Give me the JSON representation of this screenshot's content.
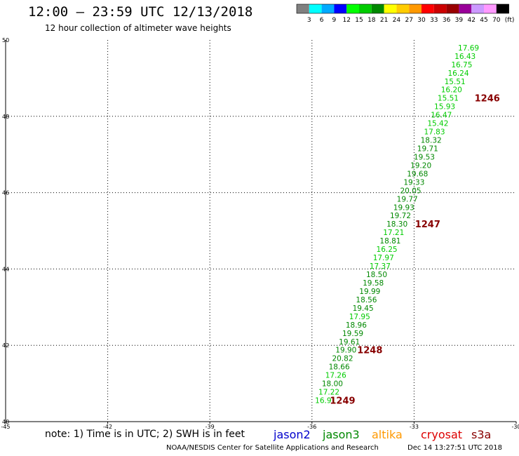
{
  "header": {
    "title": "12:00 – 23:59 UTC 12/13/2018",
    "subtitle": "12 hour collection of altimeter wave heights"
  },
  "color_scale": {
    "labels": [
      "3",
      "6",
      "9",
      "12",
      "15",
      "18",
      "21",
      "24",
      "27",
      "30",
      "33",
      "36",
      "39",
      "42",
      "45",
      "70"
    ],
    "unit": "(ft)",
    "colors": [
      "#808080",
      "#00ffff",
      "#00aaff",
      "#0000ff",
      "#00ff00",
      "#00cc00",
      "#008800",
      "#ffff00",
      "#ffcc00",
      "#ff9900",
      "#ff0000",
      "#cc0000",
      "#990000",
      "#990099",
      "#cc99ff",
      "#ff99ff",
      "#000000"
    ]
  },
  "footer": {
    "note": "note: 1) Time is in UTC; 2) SWH is in feet",
    "legend": [
      {
        "name": "jason2",
        "color": "#0000cc"
      },
      {
        "name": "jason3",
        "color": "#008800"
      },
      {
        "name": "altika",
        "color": "#ff9900"
      },
      {
        "name": "cryosat",
        "color": "#dd0000"
      },
      {
        "name": "s3a",
        "color": "#880000"
      }
    ],
    "credit": "NOAA/NESDIS Center for Satellite Applications and Research",
    "timestamp": "Dec 14 13:27:51 UTC 2018"
  },
  "chart_data": {
    "type": "scatter",
    "title": "12:00 – 23:59 UTC 12/13/2018",
    "subtitle": "12 hour collection of altimeter wave heights",
    "xlim": [
      -45,
      -30
    ],
    "ylim": [
      40,
      50
    ],
    "xticks": [
      -45,
      -42,
      -39,
      -36,
      -33,
      -30
    ],
    "xtick_labels": [
      "-45",
      "-42",
      "-39",
      "-36",
      "-33",
      "-30"
    ],
    "yticks": [
      40,
      42,
      44,
      46,
      48,
      50
    ],
    "ytick_labels": [
      "40",
      "42",
      "44",
      "46",
      "48",
      "50"
    ],
    "grid": true,
    "value_colors": {
      "lt_18": "#00cc00",
      "lt_21": "#008800",
      "ge_21": "#008800"
    },
    "series": [
      {
        "name": "jason3",
        "points": [
          {
            "x": -31.4,
            "y": 49.8,
            "v": "17.69"
          },
          {
            "x": -31.5,
            "y": 49.58,
            "v": "16.43"
          },
          {
            "x": -31.6,
            "y": 49.36,
            "v": "16.75"
          },
          {
            "x": -31.7,
            "y": 49.14,
            "v": "16.24"
          },
          {
            "x": -31.8,
            "y": 48.92,
            "v": "15.51"
          },
          {
            "x": -31.9,
            "y": 48.7,
            "v": "16.20"
          },
          {
            "x": -32.0,
            "y": 48.48,
            "v": "15.51"
          },
          {
            "x": -32.1,
            "y": 48.26,
            "v": "15.93"
          },
          {
            "x": -32.2,
            "y": 48.04,
            "v": "16.47"
          },
          {
            "x": -32.3,
            "y": 47.82,
            "v": "15.42"
          },
          {
            "x": -32.4,
            "y": 47.6,
            "v": "17.83"
          },
          {
            "x": -32.5,
            "y": 47.38,
            "v": "18.32"
          },
          {
            "x": -32.6,
            "y": 47.16,
            "v": "19.71"
          },
          {
            "x": -32.7,
            "y": 46.94,
            "v": "19.53"
          },
          {
            "x": -32.8,
            "y": 46.72,
            "v": "19.20"
          },
          {
            "x": -32.9,
            "y": 46.5,
            "v": "19.68"
          },
          {
            "x": -33.0,
            "y": 46.28,
            "v": "19.33"
          },
          {
            "x": -33.1,
            "y": 46.06,
            "v": "20.05"
          },
          {
            "x": -33.2,
            "y": 45.84,
            "v": "19.77"
          },
          {
            "x": -33.3,
            "y": 45.62,
            "v": "19.93"
          },
          {
            "x": -33.4,
            "y": 45.4,
            "v": "19.72"
          },
          {
            "x": -33.5,
            "y": 45.18,
            "v": "18.30"
          },
          {
            "x": -33.6,
            "y": 44.96,
            "v": "17.21"
          },
          {
            "x": -33.7,
            "y": 44.74,
            "v": "18.81"
          },
          {
            "x": -33.8,
            "y": 44.52,
            "v": "16.25"
          },
          {
            "x": -33.9,
            "y": 44.3,
            "v": "17.97"
          },
          {
            "x": -34.0,
            "y": 44.08,
            "v": "17.37"
          },
          {
            "x": -34.1,
            "y": 43.86,
            "v": "18.50"
          },
          {
            "x": -34.2,
            "y": 43.64,
            "v": "19.58"
          },
          {
            "x": -34.3,
            "y": 43.42,
            "v": "19.99"
          },
          {
            "x": -34.4,
            "y": 43.2,
            "v": "18.56"
          },
          {
            "x": -34.5,
            "y": 42.98,
            "v": "19.45"
          },
          {
            "x": -34.6,
            "y": 42.76,
            "v": "17.95"
          },
          {
            "x": -34.7,
            "y": 42.54,
            "v": "18.96"
          },
          {
            "x": -34.8,
            "y": 42.32,
            "v": "19.59"
          },
          {
            "x": -34.9,
            "y": 42.1,
            "v": "19.61"
          },
          {
            "x": -35.0,
            "y": 41.88,
            "v": "19.90"
          },
          {
            "x": -35.1,
            "y": 41.66,
            "v": "20.82"
          },
          {
            "x": -35.2,
            "y": 41.44,
            "v": "18.66"
          },
          {
            "x": -35.3,
            "y": 41.22,
            "v": "17.26"
          },
          {
            "x": -35.4,
            "y": 41.0,
            "v": "18.00"
          },
          {
            "x": -35.5,
            "y": 40.78,
            "v": "17.22"
          },
          {
            "x": -35.6,
            "y": 40.56,
            "v": "16.91"
          }
        ]
      }
    ],
    "pass_labels": [
      {
        "label": "1246",
        "x": -30.85,
        "y": 48.48
      },
      {
        "label": "1247",
        "x": -32.6,
        "y": 45.18
      },
      {
        "label": "1248",
        "x": -34.3,
        "y": 41.88
      },
      {
        "label": "1249",
        "x": -35.1,
        "y": 40.56
      }
    ]
  }
}
